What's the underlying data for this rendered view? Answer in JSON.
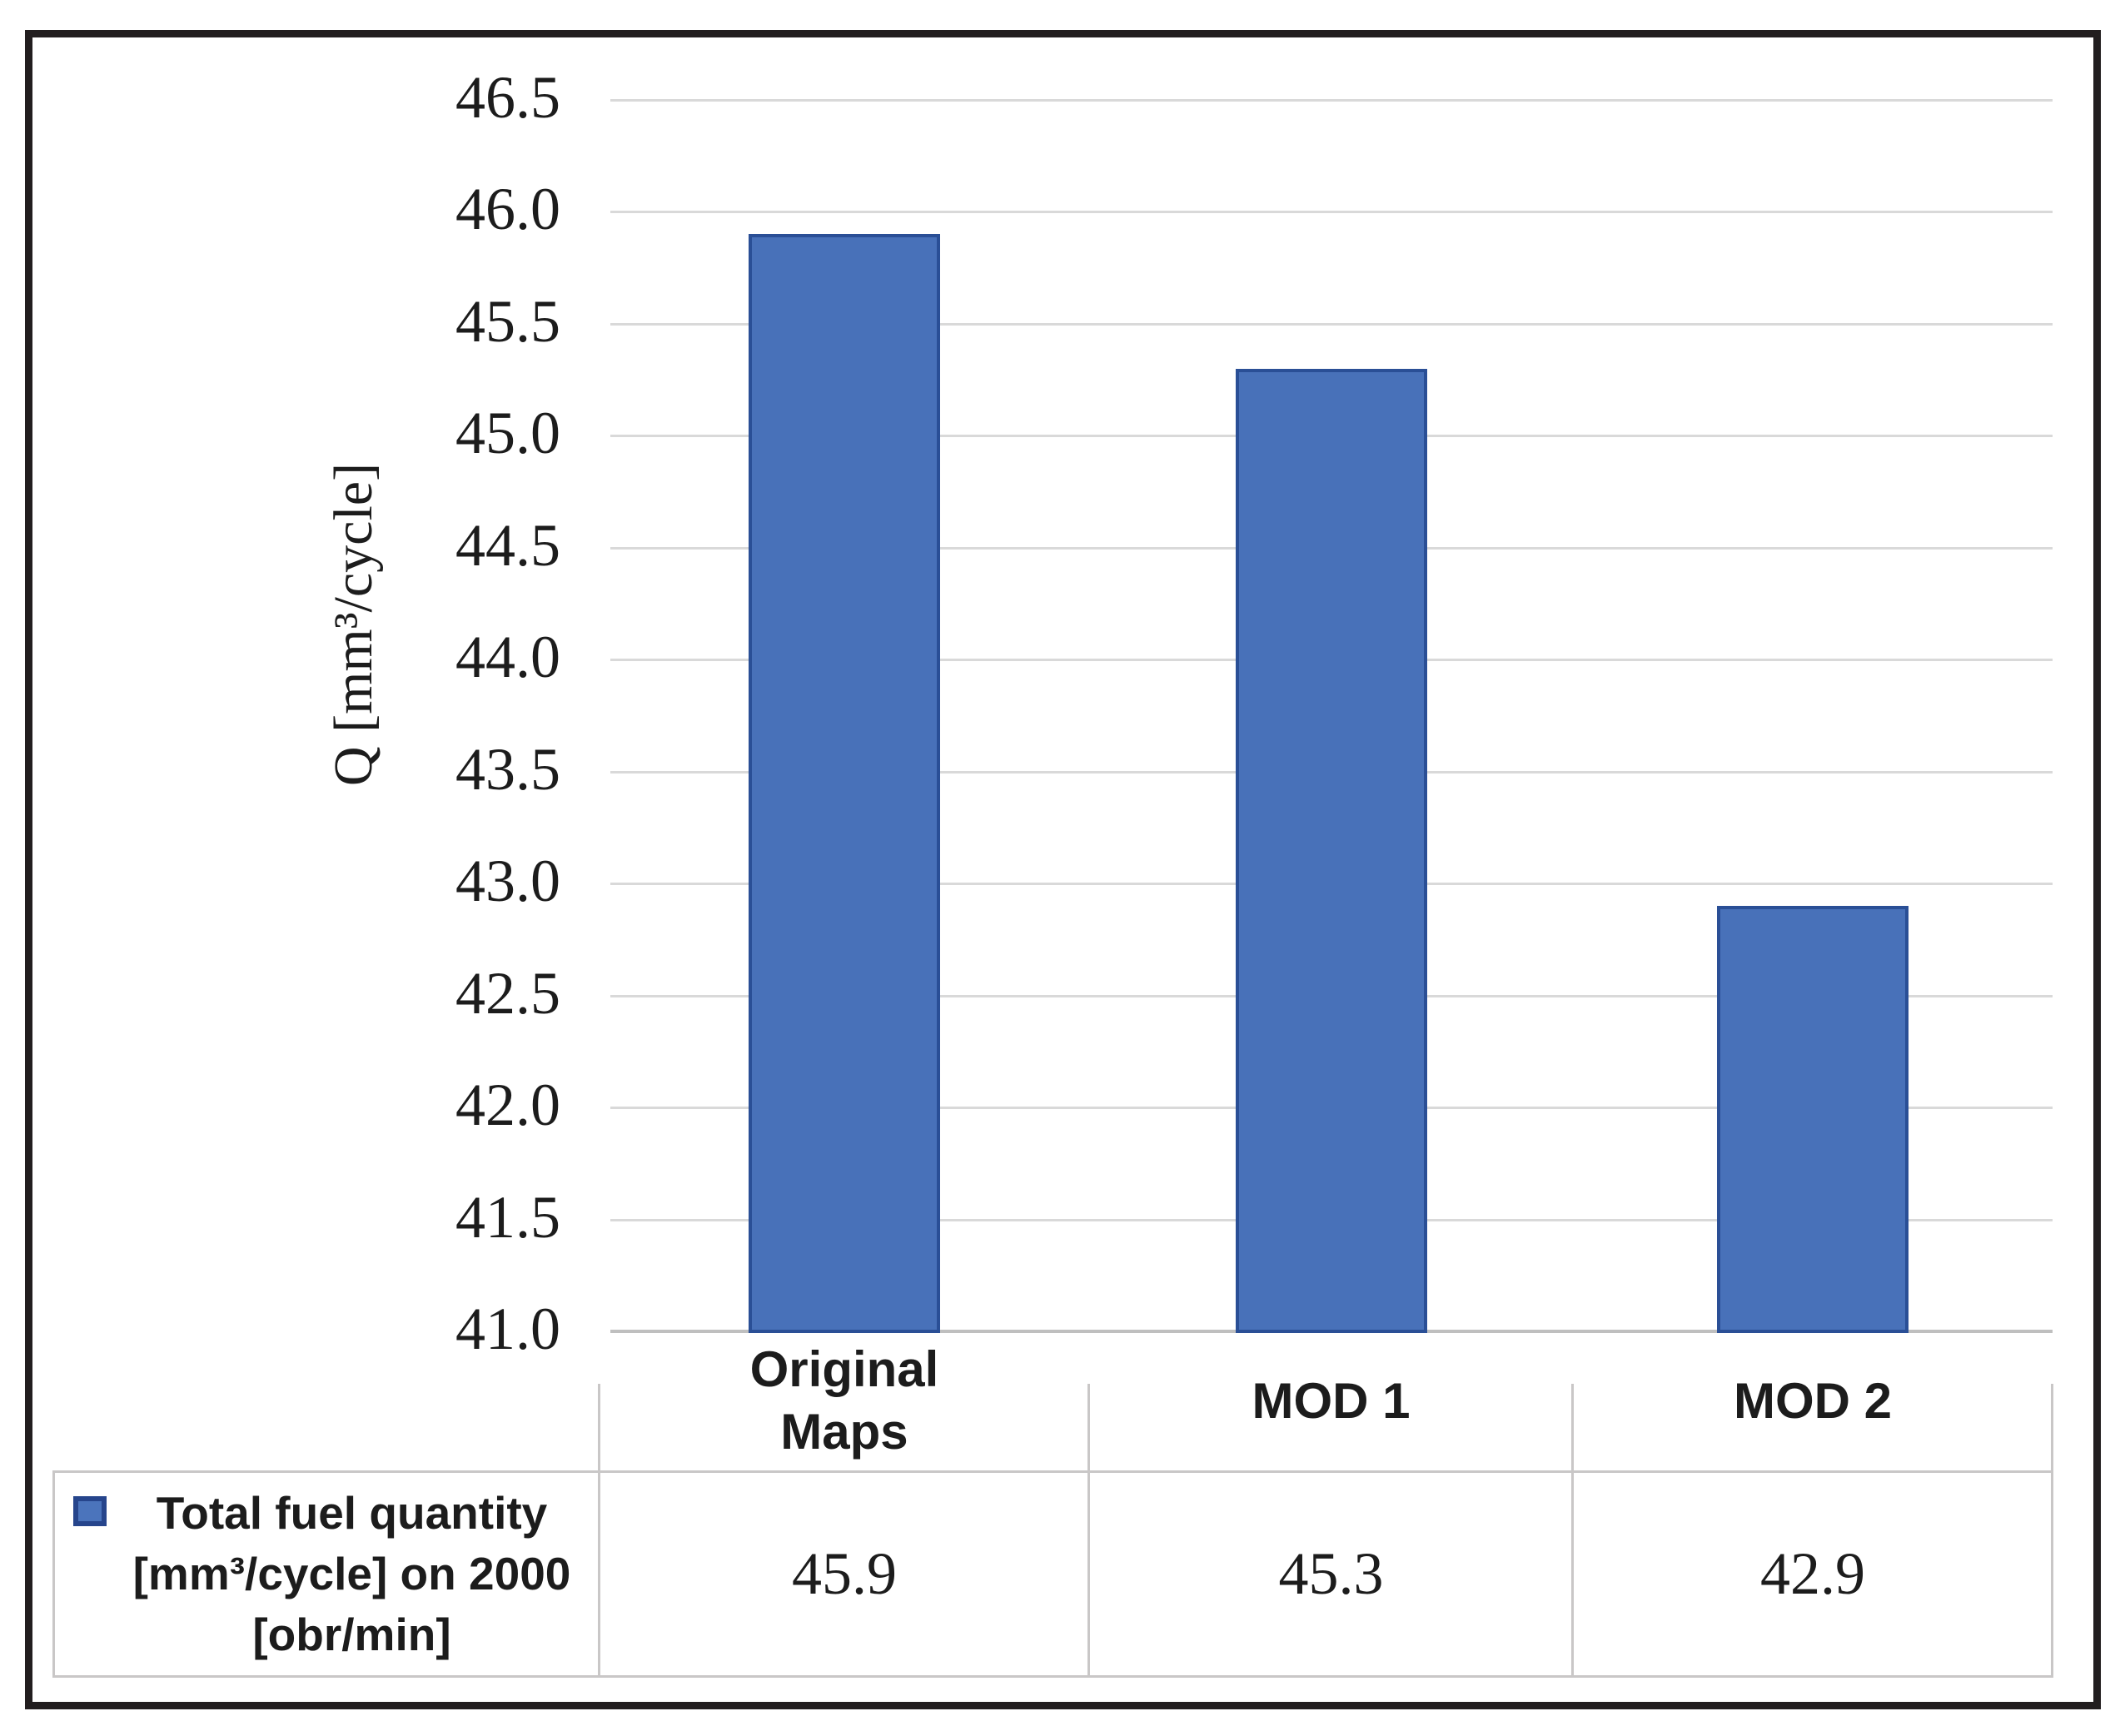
{
  "chart_data": {
    "type": "bar",
    "title": "",
    "categories": [
      "Original Maps",
      "MOD 1",
      "MOD 2"
    ],
    "category_lines": [
      [
        "Original",
        "Maps"
      ],
      [
        "MOD 1"
      ],
      [
        "MOD 2"
      ]
    ],
    "series": [
      {
        "name": "Total fuel quantity [mm³/cycle] on 2000 [obr/min]",
        "values": [
          45.9,
          45.3,
          42.9
        ]
      }
    ],
    "value_labels": [
      "45.9",
      "45.3",
      "42.9"
    ],
    "xlabel": "",
    "ylabel": "Q [mm³/cycle]",
    "ylim": [
      41.0,
      46.5
    ],
    "ytick_step": 0.5,
    "yticks": [
      "46.5",
      "46.0",
      "45.5",
      "45.0",
      "44.5",
      "44.0",
      "43.5",
      "43.0",
      "42.5",
      "42.0",
      "41.5",
      "41.0"
    ],
    "grid": true,
    "legend_position": "bottom-left-table-cell",
    "colors": {
      "bar_fill": "#4871b9",
      "bar_border": "#2a4f96",
      "gridline": "#d9d9d9",
      "axis_line": "#bfbfbf",
      "table_border": "#c9c7c7",
      "text": "#1c1c1c",
      "frame": "#221e1f"
    }
  },
  "legend": {
    "marker": "blue-square",
    "lines": [
      "Total fuel quantity",
      "[mm³/cycle] on 2000",
      "[obr/min]"
    ]
  }
}
